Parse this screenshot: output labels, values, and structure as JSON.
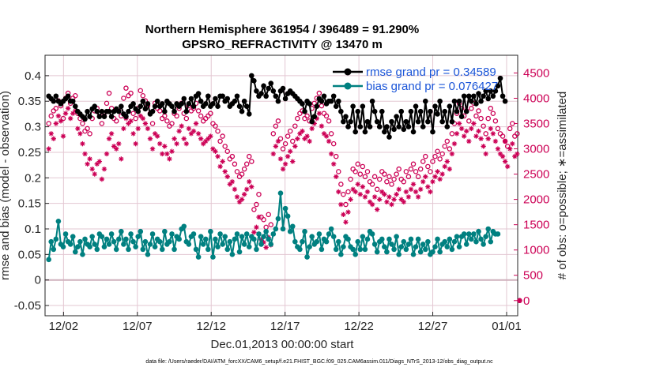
{
  "chart_data": {
    "type": "line",
    "title": "Northern Hemisphere 361954 / 396489 = 91.290%",
    "subtitle": "GPSRO_REFRACTIVITY @ 13470 m",
    "xlabel": "Dec.01,2013 00:00:00 start",
    "ylabel_left": "rmse and bias (model - observation)",
    "ylabel_right": "# of obs: o=possible; ∗=assimilated",
    "footer": "data file: /Users/raeder/DAI/ATM_forcXX/CAM6_setup/f.e21.FHIST_BGC.f09_025.CAM6assim.011/Diags_NTrS_2013-12/obs_diag_output.nc",
    "xlim": [
      -0.25,
      31.75
    ],
    "ylim_left": [
      -0.07,
      0.44
    ],
    "ylim_right": [
      -300,
      4850
    ],
    "x_tick_labels": [
      "12/02",
      "12/07",
      "12/12",
      "12/17",
      "12/22",
      "12/27",
      "01/01"
    ],
    "x_tick_values": [
      1,
      6,
      11,
      16,
      21,
      26,
      31
    ],
    "y_left_ticks": [
      "-0.05",
      "0",
      "0.05",
      "0.1",
      "0.15",
      "0.2",
      "0.25",
      "0.3",
      "0.35",
      "0.4"
    ],
    "y_left_tick_values": [
      -0.05,
      0,
      0.05,
      0.1,
      0.15,
      0.2,
      0.25,
      0.3,
      0.35,
      0.4
    ],
    "y_right_ticks": [
      "0",
      "500",
      "1000",
      "1500",
      "2000",
      "2500",
      "3000",
      "3500",
      "4000",
      "4500"
    ],
    "y_right_tick_values": [
      0,
      500,
      1000,
      1500,
      2000,
      2500,
      3000,
      3500,
      4000,
      4500
    ],
    "grid": true,
    "legend": {
      "placement": "top-right",
      "entries": [
        "rmse grand pr = 0.34589",
        "bias grand pr = 0.076427"
      ]
    },
    "colors": {
      "rmse": "#000000",
      "bias": "#008080",
      "obs": "#cc0055",
      "grid": "#e3c7d2",
      "zero_line": "#cfb0bc",
      "legend_text": "#1a55d8"
    },
    "series": [
      {
        "name": "rmse grand pr = 0.34589",
        "axis": "left",
        "marker": "filled-circle",
        "values": [
          0.36,
          0.355,
          0.35,
          0.36,
          0.35,
          0.345,
          0.35,
          0.355,
          0.36,
          0.35,
          0.35,
          0.34,
          0.33,
          0.325,
          0.32,
          0.315,
          0.33,
          0.32,
          0.335,
          0.34,
          0.33,
          0.32,
          0.33,
          0.32,
          0.33,
          0.33,
          0.32,
          0.33,
          0.335,
          0.33,
          0.34,
          0.325,
          0.32,
          0.33,
          0.34,
          0.345,
          0.335,
          0.33,
          0.34,
          0.35,
          0.335,
          0.345,
          0.325,
          0.33,
          0.34,
          0.35,
          0.34,
          0.345,
          0.33,
          0.35,
          0.345,
          0.34,
          0.33,
          0.345,
          0.34,
          0.345,
          0.355,
          0.33,
          0.345,
          0.355,
          0.34,
          0.36,
          0.365,
          0.35,
          0.34,
          0.345,
          0.36,
          0.34,
          0.345,
          0.355,
          0.34,
          0.36,
          0.36,
          0.35,
          0.355,
          0.34,
          0.345,
          0.35,
          0.36,
          0.34,
          0.33,
          0.35,
          0.34,
          0.325,
          0.4,
          0.39,
          0.37,
          0.36,
          0.365,
          0.38,
          0.36,
          0.375,
          0.385,
          0.37,
          0.36,
          0.35,
          0.37,
          0.375,
          0.355,
          0.365,
          0.37,
          0.365,
          0.36,
          0.355,
          0.35,
          0.345,
          0.33,
          0.35,
          0.345,
          0.31,
          0.32,
          0.34,
          0.355,
          0.35,
          0.36,
          0.345,
          0.35,
          0.35,
          0.36,
          0.34,
          0.35,
          0.33,
          0.31,
          0.32,
          0.3,
          0.31,
          0.34,
          0.29,
          0.33,
          0.3,
          0.34,
          0.29,
          0.31,
          0.3,
          0.35,
          0.33,
          0.31,
          0.3,
          0.33,
          0.29,
          0.3,
          0.28,
          0.31,
          0.295,
          0.32,
          0.3,
          0.33,
          0.295,
          0.31,
          0.3,
          0.33,
          0.29,
          0.34,
          0.31,
          0.33,
          0.3,
          0.35,
          0.31,
          0.33,
          0.29,
          0.34,
          0.325,
          0.35,
          0.31,
          0.33,
          0.3,
          0.34,
          0.31,
          0.35,
          0.33,
          0.35,
          0.32,
          0.36,
          0.33,
          0.36,
          0.35,
          0.36,
          0.345,
          0.365,
          0.35,
          0.36,
          0.37,
          0.355,
          0.37,
          0.36,
          0.37,
          0.38,
          0.395,
          0.36,
          0.35
        ]
      },
      {
        "name": "bias grand pr = 0.076427",
        "axis": "left",
        "marker": "filled-circle",
        "values": [
          0.04,
          0.075,
          0.06,
          0.08,
          0.115,
          0.07,
          0.065,
          0.09,
          0.075,
          0.07,
          0.085,
          0.055,
          0.065,
          0.075,
          0.05,
          0.08,
          0.07,
          0.065,
          0.085,
          0.07,
          0.06,
          0.09,
          0.085,
          0.065,
          0.08,
          0.07,
          0.09,
          0.075,
          0.06,
          0.08,
          0.095,
          0.07,
          0.08,
          0.06,
          0.09,
          0.075,
          0.065,
          0.085,
          0.095,
          0.06,
          0.075,
          0.05,
          0.07,
          0.09,
          0.065,
          0.08,
          0.075,
          0.06,
          0.095,
          0.07,
          0.075,
          0.09,
          0.06,
          0.085,
          0.08,
          0.1,
          0.105,
          0.075,
          0.07,
          0.085,
          0.09,
          0.06,
          0.045,
          0.085,
          0.07,
          0.08,
          0.06,
          0.095,
          0.045,
          0.08,
          0.065,
          0.09,
          0.07,
          0.085,
          0.06,
          0.075,
          0.05,
          0.08,
          0.09,
          0.055,
          0.085,
          0.07,
          0.09,
          0.065,
          0.085,
          0.08,
          0.06,
          0.09,
          0.07,
          0.085,
          0.095,
          0.08,
          0.07,
          0.09,
          0.1,
          0.12,
          0.17,
          0.1,
          0.14,
          0.125,
          0.095,
          0.105,
          0.075,
          0.065,
          0.06,
          0.075,
          0.095,
          0.045,
          0.065,
          0.085,
          0.07,
          0.075,
          0.09,
          0.06,
          0.08,
          0.075,
          0.09,
          0.1,
          0.085,
          0.06,
          0.075,
          0.05,
          0.065,
          0.085,
          0.08,
          0.065,
          0.06,
          0.05,
          0.075,
          0.06,
          0.085,
          0.06,
          0.08,
          0.095,
          0.09,
          0.07,
          0.055,
          0.075,
          0.08,
          0.065,
          0.055,
          0.08,
          0.07,
          0.06,
          0.085,
          0.05,
          0.065,
          0.075,
          0.06,
          0.07,
          0.08,
          0.05,
          0.065,
          0.08,
          0.055,
          0.07,
          0.06,
          0.075,
          0.05,
          0.055,
          0.065,
          0.08,
          0.055,
          0.07,
          0.075,
          0.065,
          0.08,
          0.06,
          0.075,
          0.085,
          0.065,
          0.085,
          0.09,
          0.07,
          0.09,
          0.08,
          0.09,
          0.075,
          0.095,
          0.08,
          0.07,
          0.085,
          0.1,
          0.075,
          0.095,
          0.09,
          0.09
        ]
      },
      {
        "name": "possible",
        "axis": "right",
        "marker": "open-circle",
        "values": [
          3500,
          3650,
          3750,
          3800,
          3950,
          3850,
          3600,
          4000,
          4100,
          3900,
          4000,
          4050,
          3700,
          3600,
          3500,
          3350,
          3400,
          3300,
          3600,
          3750,
          3800,
          3700,
          3500,
          3650,
          3900,
          4100,
          3800,
          3600,
          3550,
          3750,
          3650,
          4000,
          4200,
          4050,
          4100,
          3700,
          3600,
          3800,
          4150,
          4050,
          3950,
          3850,
          3700,
          3500,
          3900,
          3800,
          3750,
          3600,
          3650,
          3550,
          3450,
          3500,
          3700,
          3650,
          3800,
          3900,
          3700,
          3600,
          3850,
          3750,
          3800,
          3900,
          3750,
          3650,
          3550,
          3600,
          3650,
          3700,
          3500,
          3450,
          3350,
          3150,
          3250,
          3050,
          2950,
          2800,
          2850,
          2700,
          2550,
          2450,
          2500,
          2600,
          2700,
          2850,
          2750,
          1800,
          1900,
          2100,
          1650,
          1600,
          1450,
          1700,
          1500,
          3300,
          3450,
          3550,
          3200,
          3000,
          3100,
          3250,
          3350,
          3150,
          3450,
          3600,
          3700,
          3750,
          3600,
          3650,
          3550,
          3800,
          3900,
          4000,
          4100,
          3850,
          3700,
          3650,
          3550,
          3300,
          3100,
          2850,
          2550,
          2300,
          2100,
          1900,
          2150,
          2400,
          2600,
          2550,
          2700,
          2500,
          2650,
          2450,
          2550,
          2350,
          2300,
          2450,
          2200,
          2400,
          2550,
          2500,
          2350,
          2450,
          2300,
          2400,
          2500,
          2600,
          2400,
          2350,
          2550,
          2450,
          2600,
          2700,
          2550,
          2450,
          2600,
          2750,
          2850,
          2650,
          2550,
          2750,
          2850,
          2950,
          2800,
          2900,
          3050,
          3150,
          3000,
          3300,
          3500,
          3700,
          3900,
          3800,
          3650,
          3750,
          3550,
          3800,
          3900,
          3650,
          3750,
          3600,
          3450,
          3300,
          3600,
          3800,
          3700,
          3550,
          3400,
          3300,
          3250,
          3150,
          3050,
          3400,
          3500,
          3250,
          3300,
          0
        ]
      },
      {
        "name": "assimilated",
        "axis": "right",
        "marker": "asterisk",
        "values": [
          3000,
          3300,
          3200,
          3500,
          3650,
          3550,
          3250,
          3700,
          3800,
          3600,
          3700,
          3750,
          3400,
          3300,
          3100,
          2900,
          2700,
          2800,
          2600,
          2500,
          2700,
          2750,
          2400,
          2600,
          2900,
          3200,
          3300,
          3050,
          3000,
          3100,
          2800,
          3400,
          3600,
          3500,
          3550,
          3300,
          3100,
          3400,
          3650,
          3600,
          3500,
          3400,
          3200,
          3000,
          3300,
          3250,
          3100,
          2900,
          3050,
          2900,
          2800,
          2950,
          3200,
          3100,
          3350,
          3450,
          3200,
          3100,
          3400,
          3300,
          3350,
          3500,
          3300,
          3200,
          3100,
          3150,
          3200,
          3250,
          3000,
          2950,
          2850,
          2650,
          2750,
          2550,
          2450,
          2300,
          2350,
          2200,
          2050,
          1950,
          2000,
          2100,
          2200,
          2350,
          2250,
          1350,
          1450,
          1650,
          1200,
          1150,
          1050,
          1250,
          1100,
          2900,
          3050,
          3150,
          2800,
          2600,
          2700,
          2850,
          2950,
          2750,
          3050,
          3200,
          3300,
          3350,
          3200,
          3250,
          3150,
          3400,
          3500,
          3600,
          3700,
          3450,
          3300,
          3250,
          3150,
          2900,
          2700,
          2450,
          2150,
          1900,
          1700,
          1550,
          1750,
          2000,
          2200,
          2150,
          2300,
          2100,
          2250,
          2050,
          2150,
          1950,
          1900,
          2050,
          1800,
          2000,
          2150,
          2100,
          1950,
          2050,
          1900,
          2000,
          2100,
          2200,
          2000,
          1950,
          2150,
          2050,
          2200,
          2300,
          2150,
          2050,
          2200,
          2350,
          2450,
          2250,
          2150,
          2350,
          2450,
          2550,
          2400,
          2500,
          2650,
          2750,
          2600,
          2900,
          3100,
          3300,
          3500,
          3400,
          3250,
          3350,
          3150,
          3400,
          3500,
          3250,
          3350,
          3200,
          3050,
          2900,
          3200,
          3400,
          3300,
          3150,
          3000,
          2900,
          2850,
          2750,
          2650,
          3000,
          3100,
          2850,
          2900,
          0
        ]
      }
    ]
  }
}
